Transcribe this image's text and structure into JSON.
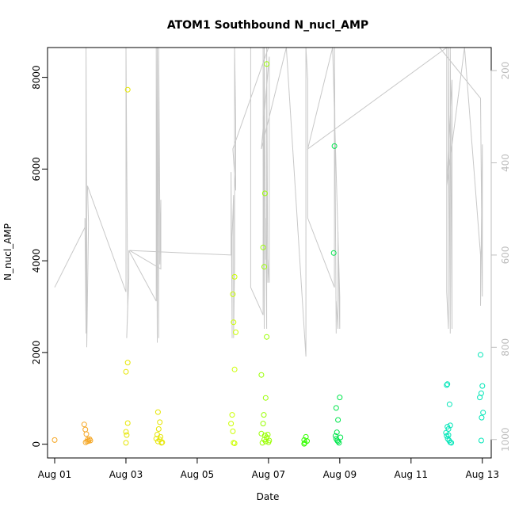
{
  "chart_data": {
    "type": "scatter",
    "title": "ATOM1 Southbound N_nucl_AMP",
    "xlabel": "Date",
    "ylabel": "N_nucl_AMP",
    "x_ticks": [
      "Aug 01",
      "Aug 03",
      "Aug 05",
      "Aug 07",
      "Aug 09",
      "Aug 11",
      "Aug 13"
    ],
    "y_ticks": [
      "0",
      "2000",
      "4000",
      "6000",
      "8000"
    ],
    "y2_ticks": [
      "200",
      "400",
      "600",
      "800",
      "1000"
    ],
    "xlim_days": [
      0.8,
      13.25
    ],
    "ylim": [
      -300,
      8650
    ],
    "y2lim": [
      1040,
      150
    ],
    "y2_reversed": true,
    "grid": false,
    "legend": "none",
    "series": [
      {
        "kind": "points",
        "color": "#f5a623",
        "points": [
          [
            1.0,
            90
          ],
          [
            1.83,
            430
          ],
          [
            1.86,
            320
          ],
          [
            1.89,
            220
          ],
          [
            1.91,
            60
          ],
          [
            1.93,
            100
          ],
          [
            1.95,
            70
          ],
          [
            1.98,
            110
          ],
          [
            2.0,
            80
          ],
          [
            1.87,
            40
          ]
        ]
      },
      {
        "kind": "points",
        "color": "#e6e600",
        "points": [
          [
            3.05,
            7730
          ],
          [
            3.05,
            1780
          ],
          [
            3.0,
            1580
          ],
          [
            3.05,
            460
          ],
          [
            3.0,
            270
          ],
          [
            3.02,
            200
          ],
          [
            3.0,
            30
          ],
          [
            3.9,
            700
          ],
          [
            3.95,
            480
          ],
          [
            3.92,
            330
          ],
          [
            3.88,
            210
          ],
          [
            3.85,
            120
          ],
          [
            3.9,
            60
          ],
          [
            3.95,
            100
          ],
          [
            4.0,
            30
          ],
          [
            4.02,
            40
          ],
          [
            3.97,
            160
          ]
        ]
      },
      {
        "kind": "points",
        "color": "#ccff00",
        "points": [
          [
            6.0,
            3270
          ],
          [
            6.05,
            3650
          ],
          [
            6.02,
            2660
          ],
          [
            6.08,
            2440
          ],
          [
            6.05,
            1630
          ],
          [
            5.98,
            640
          ],
          [
            5.95,
            450
          ],
          [
            6.0,
            280
          ],
          [
            6.05,
            20
          ],
          [
            6.02,
            30
          ]
        ]
      },
      {
        "kind": "points",
        "color": "#99ff00",
        "points": [
          [
            6.95,
            8290
          ],
          [
            6.9,
            5470
          ],
          [
            6.85,
            4290
          ],
          [
            6.88,
            3870
          ],
          [
            6.95,
            2340
          ],
          [
            6.8,
            1510
          ],
          [
            6.92,
            1010
          ],
          [
            6.87,
            640
          ],
          [
            6.85,
            450
          ],
          [
            6.8,
            230
          ],
          [
            6.9,
            190
          ],
          [
            6.95,
            150
          ],
          [
            6.88,
            100
          ],
          [
            6.92,
            60
          ],
          [
            7.0,
            40
          ],
          [
            6.98,
            210
          ],
          [
            6.83,
            30
          ],
          [
            7.02,
            80
          ]
        ]
      },
      {
        "kind": "points",
        "color": "#33ff00",
        "points": [
          [
            8.05,
            160
          ],
          [
            8.0,
            90
          ],
          [
            8.02,
            30
          ],
          [
            8.08,
            70
          ],
          [
            8.0,
            10
          ]
        ]
      },
      {
        "kind": "points",
        "color": "#00e64d",
        "points": [
          [
            8.85,
            6500
          ],
          [
            8.83,
            4170
          ],
          [
            8.9,
            790
          ],
          [
            9.0,
            1020
          ],
          [
            8.95,
            530
          ],
          [
            8.92,
            260
          ],
          [
            8.88,
            180
          ],
          [
            8.9,
            120
          ],
          [
            8.93,
            80
          ],
          [
            8.95,
            60
          ],
          [
            8.98,
            30
          ],
          [
            9.02,
            150
          ]
        ]
      },
      {
        "kind": "points",
        "color": "#00e6b8",
        "points": [
          [
            12.02,
            1310
          ],
          [
            12.0,
            1290
          ],
          [
            12.08,
            870
          ],
          [
            12.02,
            380
          ],
          [
            12.05,
            330
          ],
          [
            12.1,
            410
          ],
          [
            11.98,
            250
          ],
          [
            12.0,
            180
          ],
          [
            12.03,
            120
          ],
          [
            12.07,
            80
          ],
          [
            12.1,
            40
          ],
          [
            12.13,
            30
          ],
          [
            12.95,
            1950
          ],
          [
            13.0,
            1270
          ],
          [
            12.97,
            1110
          ],
          [
            12.93,
            1020
          ],
          [
            13.02,
            690
          ],
          [
            12.98,
            580
          ],
          [
            12.97,
            80
          ],
          [
            12.05,
            200
          ]
        ]
      }
    ],
    "overlay_line": {
      "axis": "right",
      "color": "#c8c8c8",
      "x": [
        1.0,
        1.85,
        1.85,
        1.88,
        1.88,
        1.9,
        1.9,
        1.95,
        1.92,
        3.0,
        3.0,
        3.05,
        3.02,
        3.08,
        3.08,
        3.85,
        3.85,
        3.88,
        3.88,
        3.92,
        3.92,
        3.95,
        3.95,
        3.98,
        3.98,
        3.1,
        5.95,
        5.95,
        5.98,
        5.98,
        6.02,
        6.02,
        6.05,
        6.05,
        6.08,
        6.08,
        6.0,
        7.0,
        6.5,
        6.5,
        6.85,
        6.85,
        6.88,
        6.88,
        6.92,
        6.92,
        6.95,
        6.95,
        6.98,
        6.98,
        7.02,
        7.02,
        6.8,
        7.5,
        8.05,
        8.05,
        8.1,
        8.1,
        8.85,
        8.85,
        8.9,
        8.9,
        8.95,
        8.95,
        9.0,
        9.0,
        8.8,
        8.1,
        12.0,
        12.0,
        12.05,
        12.05,
        12.1,
        12.1,
        12.15,
        12.15,
        12.0,
        12.5,
        12.95,
        12.95,
        13.0,
        13.0,
        12.95,
        11.8
      ],
      "y": [
        670,
        540,
        520,
        770,
        150,
        580,
        800,
        530,
        450,
        680,
        150,
        710,
        780,
        650,
        590,
        700,
        120,
        790,
        110,
        780,
        140,
        510,
        620,
        480,
        630,
        590,
        600,
        420,
        780,
        560,
        470,
        780,
        620,
        130,
        310,
        460,
        370,
        130,
        150,
        670,
        730,
        150,
        760,
        120,
        610,
        520,
        760,
        130,
        660,
        610,
        660,
        170,
        370,
        130,
        820,
        150,
        220,
        520,
        670,
        130,
        770,
        700,
        760,
        550,
        760,
        690,
        110,
        370,
        150,
        680,
        760,
        120,
        770,
        110,
        760,
        220,
        450,
        110,
        600,
        710,
        360,
        690,
        260,
        130
      ]
    }
  }
}
